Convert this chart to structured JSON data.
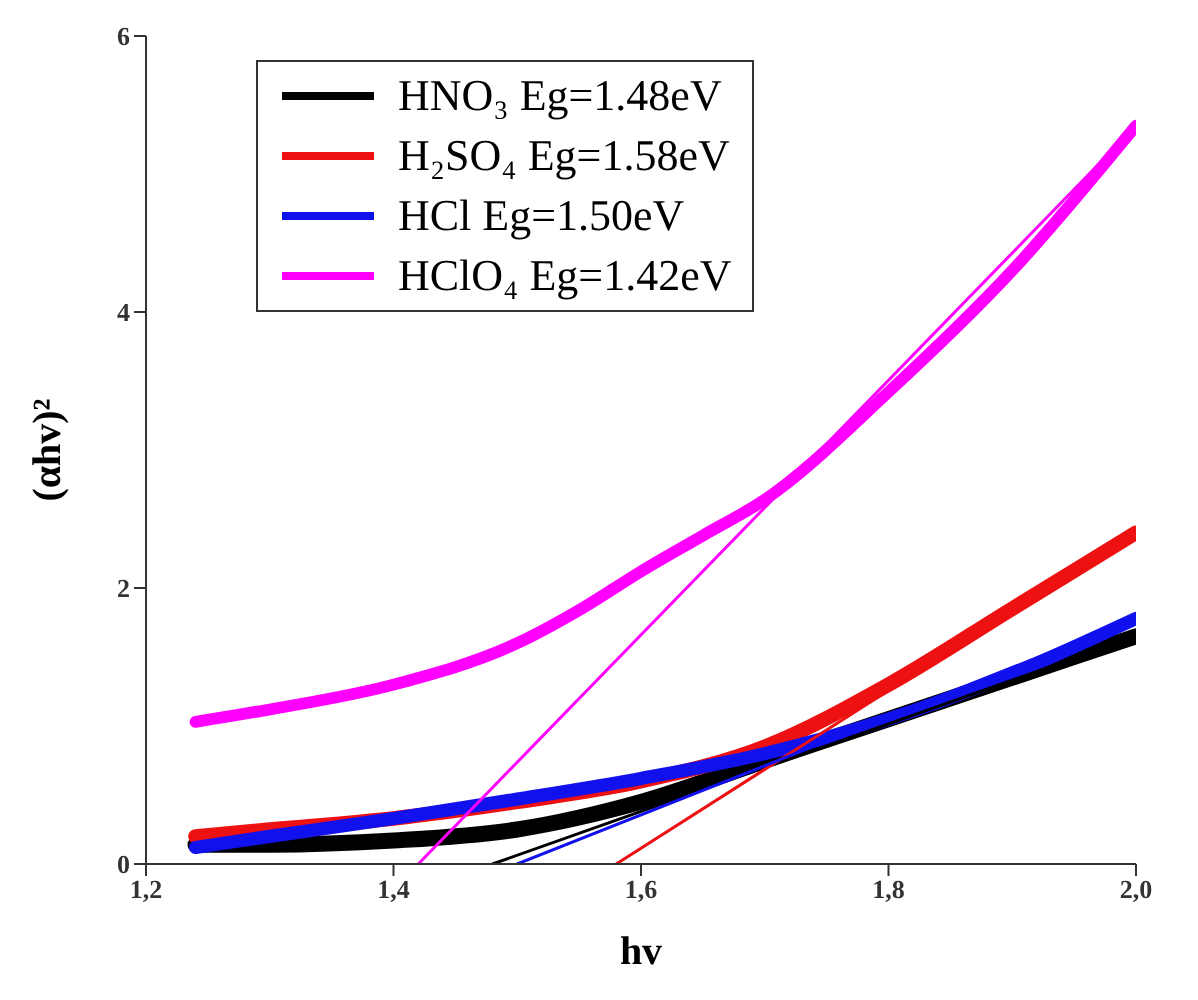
{
  "chart_data": {
    "type": "line",
    "xlabel": "hv",
    "ylabel": "(αhv)²",
    "xlim": [
      1.2,
      2.0
    ],
    "xticks": [
      {
        "value": 1.2,
        "label": "1,2"
      },
      {
        "value": 1.4,
        "label": "1,4"
      },
      {
        "value": 1.6,
        "label": "1,6"
      },
      {
        "value": 1.8,
        "label": "1,8"
      },
      {
        "value": 2.0,
        "label": "2,0"
      }
    ],
    "ylim": [
      0,
      6
    ],
    "yticks": [
      0,
      2,
      4,
      6
    ],
    "grid": false,
    "legend": "top left",
    "marker": "none",
    "series": [
      {
        "name": "HNO₃ Eg=1.48eV",
        "color": "#000000",
        "x": [
          1.24,
          1.3,
          1.4,
          1.5,
          1.6,
          1.7,
          1.8,
          1.9,
          2.0
        ],
        "values": [
          0.14,
          0.14,
          0.17,
          0.25,
          0.45,
          0.75,
          1.05,
          1.35,
          1.65
        ]
      },
      {
        "name": "H₂SO₄ Eg=1.58eV",
        "color": "#ee1111",
        "x": [
          1.24,
          1.3,
          1.4,
          1.5,
          1.6,
          1.7,
          1.8,
          1.9,
          2.0
        ],
        "values": [
          0.2,
          0.25,
          0.33,
          0.45,
          0.6,
          0.85,
          1.3,
          1.85,
          2.4
        ]
      },
      {
        "name": "HCl Eg=1.50eV",
        "color": "#1111ee",
        "x": [
          1.24,
          1.3,
          1.4,
          1.5,
          1.6,
          1.7,
          1.8,
          1.9,
          2.0
        ],
        "values": [
          0.12,
          0.2,
          0.33,
          0.47,
          0.62,
          0.8,
          1.05,
          1.38,
          1.78
        ]
      },
      {
        "name": "HClO₄ Eg=1.42eV",
        "color": "#ff00ff",
        "x": [
          1.24,
          1.3,
          1.4,
          1.5,
          1.55,
          1.6,
          1.65,
          1.7,
          1.8,
          1.9,
          2.0
        ],
        "values": [
          1.03,
          1.12,
          1.3,
          1.6,
          1.84,
          2.12,
          2.38,
          2.64,
          3.42,
          4.3,
          5.35
        ]
      },
      {
        "color": "#000000",
        "x": [
          1.48,
          2.0
        ],
        "values": [
          0,
          1.65
        ]
      },
      {
        "color": "#ee1111",
        "x": [
          1.58,
          2.0
        ],
        "values": [
          0,
          2.4
        ]
      },
      {
        "color": "#1111ee",
        "x": [
          1.5,
          2.0
        ],
        "values": [
          0,
          1.78
        ]
      },
      {
        "color": "#ff00ff",
        "x": [
          1.42,
          2.0
        ],
        "values": [
          0,
          5.35
        ]
      }
    ]
  }
}
